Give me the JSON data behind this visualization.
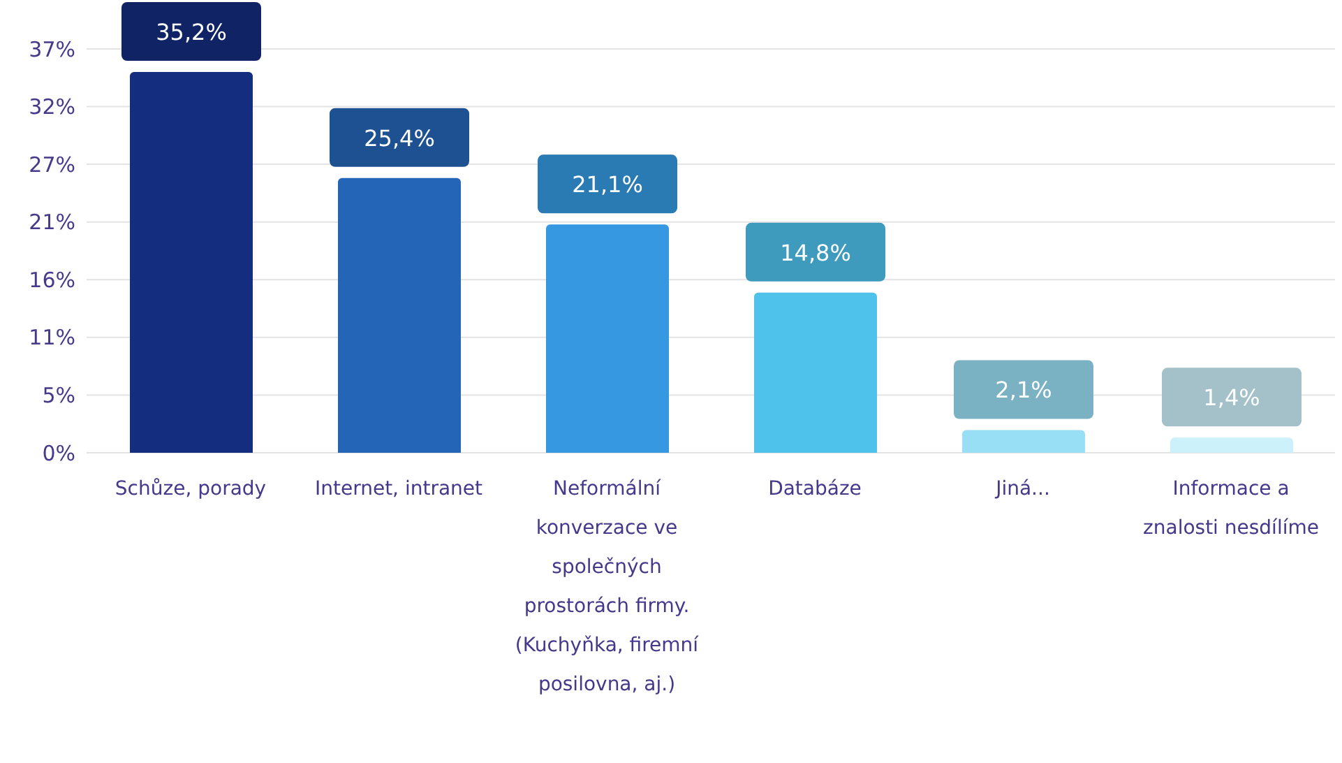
{
  "chart_data": {
    "type": "bar",
    "categories": [
      "Schůze, porady",
      "Internet, intranet",
      "Neformální konverzace ve společných prostorách firmy. (Kuchyňka, firemní posilovna, aj.)",
      "Databáze",
      "Jiná...",
      "Informace a znalosti nesdílíme"
    ],
    "values": [
      35.2,
      25.4,
      21.1,
      14.8,
      2.1,
      1.4
    ],
    "value_labels": [
      "35,2%",
      "25,4%",
      "21,1%",
      "14,8%",
      "2,1%",
      "1,4%"
    ],
    "colors": [
      "#142d7e",
      "#2565b7",
      "#3598e1",
      "#4fc2ec",
      "#98def5",
      "#cdf1fb"
    ],
    "ylim": [
      0,
      37.33
    ],
    "yticks": [
      {
        "value": 0,
        "label": "0%"
      },
      {
        "value": 5.33,
        "label": "5%"
      },
      {
        "value": 10.67,
        "label": "11%"
      },
      {
        "value": 16,
        "label": "16%"
      },
      {
        "value": 21.33,
        "label": "21%"
      },
      {
        "value": 26.67,
        "label": "27%"
      },
      {
        "value": 32,
        "label": "32%"
      },
      {
        "value": 37.33,
        "label": "37%"
      }
    ],
    "grid": "y",
    "legend": false
  }
}
